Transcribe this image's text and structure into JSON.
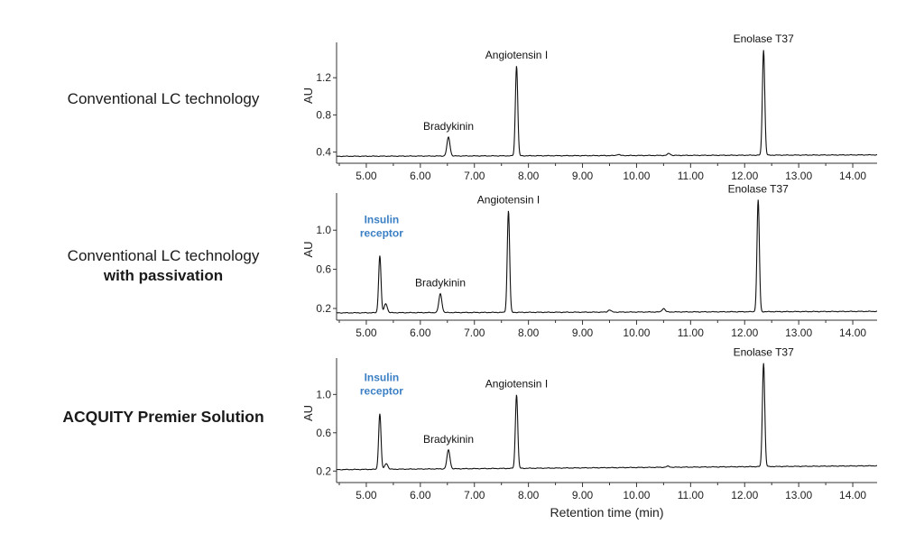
{
  "rows": [
    {
      "label": "Conventional LC technology",
      "sublabel": "",
      "bold": false
    },
    {
      "label": "Conventional LC technology",
      "sublabel": "with passivation",
      "bold": false
    },
    {
      "label": "ACQUITY Premier Solution",
      "sublabel": "",
      "bold": true
    }
  ],
  "chart_data": [
    {
      "type": "line",
      "ylabel": "AU",
      "xlabel": "",
      "xlim": [
        4.45,
        14.45
      ],
      "ylim": [
        0.28,
        1.58
      ],
      "xticks": [
        "5.00",
        "6.00",
        "7.00",
        "8.00",
        "9.00",
        "10.00",
        "11.00",
        "12.00",
        "13.00",
        "14.00"
      ],
      "yticks": [
        "0.4",
        "0.8",
        "1.2"
      ],
      "baseline": [
        [
          4.45,
          0.355
        ],
        [
          14.45,
          0.37
        ]
      ],
      "peaks": [
        {
          "x": 6.52,
          "height": 0.56,
          "label": "Bradykinin"
        },
        {
          "x": 7.78,
          "height": 1.33,
          "label": "Angiotensin I"
        },
        {
          "x": 9.66,
          "height": 0.375,
          "label": ""
        },
        {
          "x": 10.6,
          "height": 0.385,
          "label": ""
        },
        {
          "x": 12.35,
          "height": 1.5,
          "label": "Enolase T37"
        }
      ]
    },
    {
      "type": "line",
      "ylabel": "AU",
      "xlabel": "",
      "xlim": [
        4.45,
        14.45
      ],
      "ylim": [
        0.08,
        1.38
      ],
      "xticks": [
        "5.00",
        "6.00",
        "7.00",
        "8.00",
        "9.00",
        "10.00",
        "11.00",
        "12.00",
        "13.00",
        "14.00"
      ],
      "yticks": [
        "0.2",
        "0.6",
        "1.0"
      ],
      "baseline": [
        [
          4.45,
          0.155
        ],
        [
          14.45,
          0.17
        ]
      ],
      "peaks": [
        {
          "x": 5.25,
          "height": 0.74,
          "label": "Insulin receptor"
        },
        {
          "x": 5.36,
          "height": 0.25,
          "label": ""
        },
        {
          "x": 6.37,
          "height": 0.35,
          "label": "Bradykinin"
        },
        {
          "x": 7.63,
          "height": 1.2,
          "label": "Angiotensin I"
        },
        {
          "x": 9.5,
          "height": 0.185,
          "label": ""
        },
        {
          "x": 10.5,
          "height": 0.2,
          "label": ""
        },
        {
          "x": 12.25,
          "height": 1.31,
          "label": "Enolase T37"
        }
      ]
    },
    {
      "type": "line",
      "ylabel": "AU",
      "xlabel": "Retention time (min)",
      "xlim": [
        4.45,
        14.45
      ],
      "ylim": [
        0.08,
        1.38
      ],
      "xticks": [
        "5.00",
        "6.00",
        "7.00",
        "8.00",
        "9.00",
        "10.00",
        "11.00",
        "12.00",
        "13.00",
        "14.00"
      ],
      "yticks": [
        "0.2",
        "0.6",
        "1.0"
      ],
      "baseline": [
        [
          4.45,
          0.215
        ],
        [
          14.45,
          0.255
        ]
      ],
      "peaks": [
        {
          "x": 5.25,
          "height": 0.8,
          "label": "Insulin receptor"
        },
        {
          "x": 5.37,
          "height": 0.28,
          "label": ""
        },
        {
          "x": 6.52,
          "height": 0.42,
          "label": "Bradykinin"
        },
        {
          "x": 7.78,
          "height": 1.0,
          "label": "Angiotensin I"
        },
        {
          "x": 9.63,
          "height": 0.235,
          "label": ""
        },
        {
          "x": 10.58,
          "height": 0.25,
          "label": ""
        },
        {
          "x": 12.35,
          "height": 1.33,
          "label": "Enolase T37"
        }
      ]
    }
  ]
}
